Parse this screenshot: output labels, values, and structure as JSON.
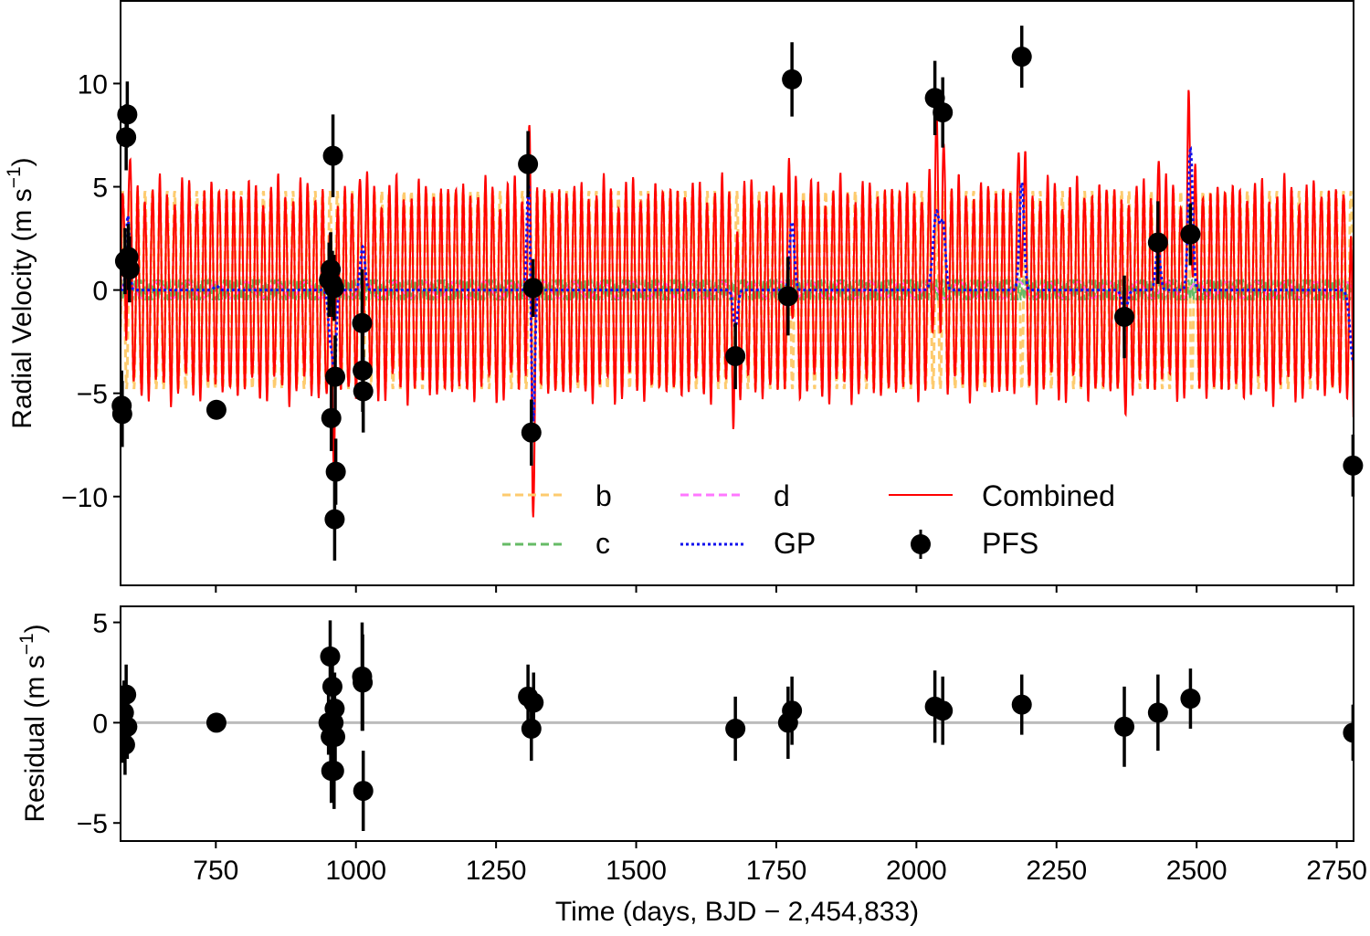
{
  "chart_data": [
    {
      "type": "line",
      "panel": "top",
      "xlabel": "",
      "ylabel": "Radial Velocity (m s⁻¹)",
      "ylabel_main": "Radial Velocity (m s",
      "ylabel_exp": "−1",
      "ylabel_close": ")",
      "xlim": [
        580,
        2780
      ],
      "ylim": [
        -14.3,
        14.0
      ],
      "xticks": [
        750,
        1000,
        1250,
        1500,
        1750,
        2000,
        2250,
        2500,
        2750
      ],
      "yticks": [
        10,
        5,
        0,
        -5,
        -10
      ],
      "ytick_labels": [
        "10",
        "5",
        "0",
        "−5",
        "−10"
      ],
      "legend": {
        "placement": "lower-center",
        "entries": [
          {
            "key": "b",
            "label": "b",
            "color": "#FDCB6E",
            "style": "dashed"
          },
          {
            "key": "c",
            "label": "c",
            "color": "#66BB66",
            "style": "dashed"
          },
          {
            "key": "d",
            "label": "d",
            "color": "#FF77FF",
            "style": "dashed"
          },
          {
            "key": "gp",
            "label": "GP",
            "color": "#1111EE",
            "style": "dotted"
          },
          {
            "key": "combined",
            "label": "Combined",
            "color": "#FF0000",
            "style": "solid"
          },
          {
            "key": "pfs",
            "label": "PFS",
            "color": "#000000",
            "style": "errorbar-marker"
          }
        ]
      },
      "model": {
        "planet_b": {
          "amplitude": 4.8,
          "period": 13.2
        },
        "planet_c": {
          "amplitude": 0.5,
          "period": 5.7
        },
        "planet_d": {
          "amplitude": 0.4,
          "period": 53.0
        },
        "gp_bumps": [
          {
            "t": 593,
            "amp": 3.6,
            "width": 3
          },
          {
            "t": 751,
            "amp": 0.2,
            "width": 4
          },
          {
            "t": 955,
            "amp": -2.5,
            "width": 4
          },
          {
            "t": 962,
            "amp": -3.4,
            "width": 3
          },
          {
            "t": 1012,
            "amp": 2.1,
            "width": 4
          },
          {
            "t": 1308,
            "amp": 5.3,
            "width": 3
          },
          {
            "t": 1316,
            "amp": -6.5,
            "width": 3
          },
          {
            "t": 1677,
            "amp": -1.8,
            "width": 4
          },
          {
            "t": 1778,
            "amp": 3.3,
            "width": 4
          },
          {
            "t": 2036,
            "amp": 3.8,
            "width": 6
          },
          {
            "t": 2048,
            "amp": 2.8,
            "width": 4
          },
          {
            "t": 2188,
            "amp": 5.2,
            "width": 4
          },
          {
            "t": 2372,
            "amp": -1.0,
            "width": 5
          },
          {
            "t": 2431,
            "amp": 2.0,
            "width": 4
          },
          {
            "t": 2489,
            "amp": 6.8,
            "width": 4
          },
          {
            "t": 2780,
            "amp": -3.5,
            "width": 6
          }
        ],
        "colors": {
          "b": "#FDCB6E",
          "c": "#66BB66",
          "d": "#FF77FF",
          "gp": "#1111EE",
          "combined": "#FF0000"
        }
      },
      "series": [
        {
          "name": "PFS",
          "type": "errorbar",
          "color": "#000000",
          "points": [
            {
              "x": 582,
              "y": -5.6,
              "err": 1.7
            },
            {
              "x": 583,
              "y": -6.0,
              "err": 1.6
            },
            {
              "x": 588,
              "y": 1.4,
              "err": 1.6
            },
            {
              "x": 590,
              "y": 7.4,
              "err": 1.6
            },
            {
              "x": 592,
              "y": 8.5,
              "err": 1.6
            },
            {
              "x": 594,
              "y": 1.6,
              "err": 1.6
            },
            {
              "x": 596,
              "y": 1.0,
              "err": 1.6
            },
            {
              "x": 751,
              "y": -5.8,
              "err": 0.3
            },
            {
              "x": 952,
              "y": 0.5,
              "err": 1.8
            },
            {
              "x": 955,
              "y": 1.0,
              "err": 1.8
            },
            {
              "x": 956,
              "y": -6.2,
              "err": 1.6
            },
            {
              "x": 958,
              "y": 0.3,
              "err": 1.6
            },
            {
              "x": 959,
              "y": 6.5,
              "err": 2.0
            },
            {
              "x": 961,
              "y": 0.1,
              "err": 1.6
            },
            {
              "x": 962,
              "y": -11.1,
              "err": 2.0
            },
            {
              "x": 963,
              "y": -4.2,
              "err": 2.0
            },
            {
              "x": 964,
              "y": -8.8,
              "err": 1.6
            },
            {
              "x": 1011,
              "y": -1.6,
              "err": 2.6
            },
            {
              "x": 1012,
              "y": -3.9,
              "err": 2.0
            },
            {
              "x": 1013,
              "y": -4.9,
              "err": 2.0
            },
            {
              "x": 1307,
              "y": 6.1,
              "err": 1.6
            },
            {
              "x": 1313,
              "y": -6.9,
              "err": 1.6
            },
            {
              "x": 1316,
              "y": 0.1,
              "err": 1.4
            },
            {
              "x": 1677,
              "y": -3.2,
              "err": 1.6
            },
            {
              "x": 1771,
              "y": -0.3,
              "err": 1.9
            },
            {
              "x": 1778,
              "y": 10.2,
              "err": 1.8
            },
            {
              "x": 2033,
              "y": 9.3,
              "err": 1.8
            },
            {
              "x": 2047,
              "y": 8.6,
              "err": 1.7
            },
            {
              "x": 2188,
              "y": 11.3,
              "err": 1.5
            },
            {
              "x": 2371,
              "y": -1.3,
              "err": 2.0
            },
            {
              "x": 2431,
              "y": 2.3,
              "err": 2.0
            },
            {
              "x": 2489,
              "y": 2.7,
              "err": 1.5
            },
            {
              "x": 2779,
              "y": -8.5,
              "err": 1.5
            }
          ]
        }
      ]
    },
    {
      "type": "scatter",
      "panel": "bottom",
      "xlabel": "Time (days, BJD − 2,454,833)",
      "ylabel": "Residual (m s⁻¹)",
      "ylabel_main": "Residual (m s",
      "ylabel_exp": "−1",
      "ylabel_close": ")",
      "xlim": [
        580,
        2780
      ],
      "ylim": [
        -5.9,
        5.8
      ],
      "xticks": [
        750,
        1000,
        1250,
        1500,
        1750,
        2000,
        2250,
        2500,
        2750
      ],
      "xtick_labels": [
        "750",
        "1000",
        "1250",
        "1500",
        "1750",
        "2000",
        "2250",
        "2500",
        "2750"
      ],
      "yticks": [
        5,
        0,
        -5
      ],
      "ytick_labels": [
        "5",
        "0",
        "−5"
      ],
      "zero_line_color": "#BBBBBB",
      "series": [
        {
          "name": "PFS residual",
          "type": "errorbar",
          "color": "#000000",
          "points": [
            {
              "x": 584,
              "y": -0.4,
              "err": 1.6
            },
            {
              "x": 586,
              "y": 0.5,
              "err": 1.6
            },
            {
              "x": 588,
              "y": -1.1,
              "err": 1.5
            },
            {
              "x": 590,
              "y": 1.4,
              "err": 1.5
            },
            {
              "x": 592,
              "y": -0.2,
              "err": 1.6
            },
            {
              "x": 751,
              "y": 0.0,
              "err": 0.1
            },
            {
              "x": 951,
              "y": 0.0,
              "err": 1.6
            },
            {
              "x": 954,
              "y": 3.3,
              "err": 1.8
            },
            {
              "x": 955,
              "y": -0.7,
              "err": 1.8
            },
            {
              "x": 956,
              "y": -2.4,
              "err": 1.6
            },
            {
              "x": 958,
              "y": 1.8,
              "err": 1.6
            },
            {
              "x": 960,
              "y": 0.0,
              "err": 1.6
            },
            {
              "x": 961,
              "y": -2.4,
              "err": 1.9
            },
            {
              "x": 962,
              "y": 0.7,
              "err": 1.8
            },
            {
              "x": 963,
              "y": -0.7,
              "err": 1.6
            },
            {
              "x": 1011,
              "y": 2.3,
              "err": 2.7
            },
            {
              "x": 1012,
              "y": 2.0,
              "err": 2.4
            },
            {
              "x": 1013,
              "y": -3.4,
              "err": 2.0
            },
            {
              "x": 1307,
              "y": 1.3,
              "err": 1.6
            },
            {
              "x": 1313,
              "y": -0.3,
              "err": 1.6
            },
            {
              "x": 1317,
              "y": 1.0,
              "err": 1.5
            },
            {
              "x": 1677,
              "y": -0.3,
              "err": 1.6
            },
            {
              "x": 1771,
              "y": 0.0,
              "err": 1.8
            },
            {
              "x": 1778,
              "y": 0.6,
              "err": 1.7
            },
            {
              "x": 2033,
              "y": 0.8,
              "err": 1.8
            },
            {
              "x": 2047,
              "y": 0.6,
              "err": 1.7
            },
            {
              "x": 2188,
              "y": 0.9,
              "err": 1.5
            },
            {
              "x": 2371,
              "y": -0.2,
              "err": 2.0
            },
            {
              "x": 2431,
              "y": 0.5,
              "err": 1.9
            },
            {
              "x": 2489,
              "y": 1.2,
              "err": 1.5
            },
            {
              "x": 2779,
              "y": -0.5,
              "err": 1.4
            }
          ]
        }
      ]
    }
  ]
}
